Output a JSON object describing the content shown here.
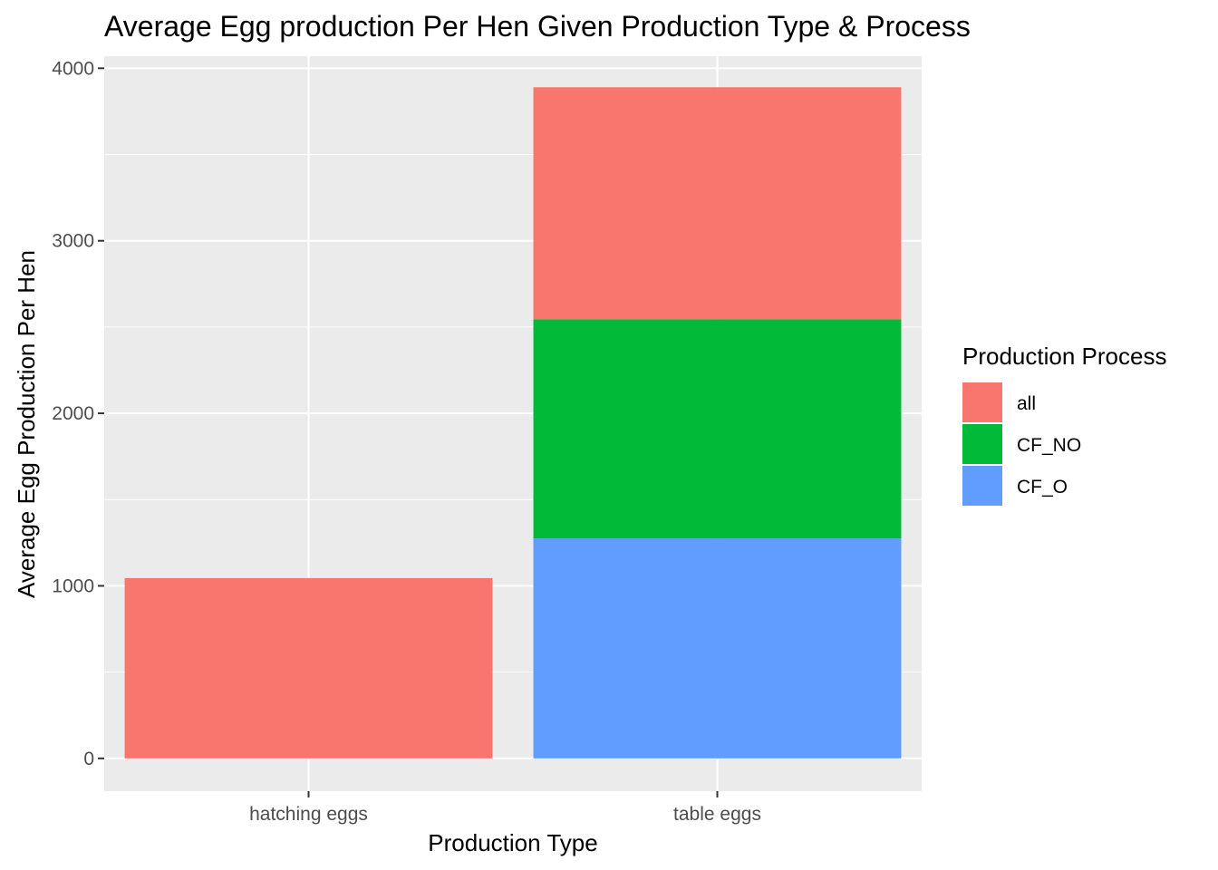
{
  "chart_data": {
    "type": "bar",
    "stacked": true,
    "title": "Average Egg production Per Hen Given Production Type & Process",
    "xlabel": "Production Type",
    "ylabel": "Average Egg Production Per Hen",
    "categories": [
      "hatching eggs",
      "table eggs"
    ],
    "series": [
      {
        "name": "all",
        "color": "#F8766D",
        "values": [
          1045,
          1345
        ]
      },
      {
        "name": "CF_NO",
        "color": "#00BA38",
        "values": [
          0,
          1270
        ]
      },
      {
        "name": "CF_O",
        "color": "#619CFF",
        "values": [
          0,
          1275
        ]
      }
    ],
    "stack_order_bottom_to_top": [
      "CF_O",
      "CF_NO",
      "all"
    ],
    "ylim": [
      -190,
      4070
    ],
    "yticks": [
      0,
      1000,
      2000,
      3000,
      4000
    ],
    "grid": true,
    "panel_background": "#EBEBEB",
    "legend": {
      "title": "Production Process",
      "position": "right"
    }
  }
}
